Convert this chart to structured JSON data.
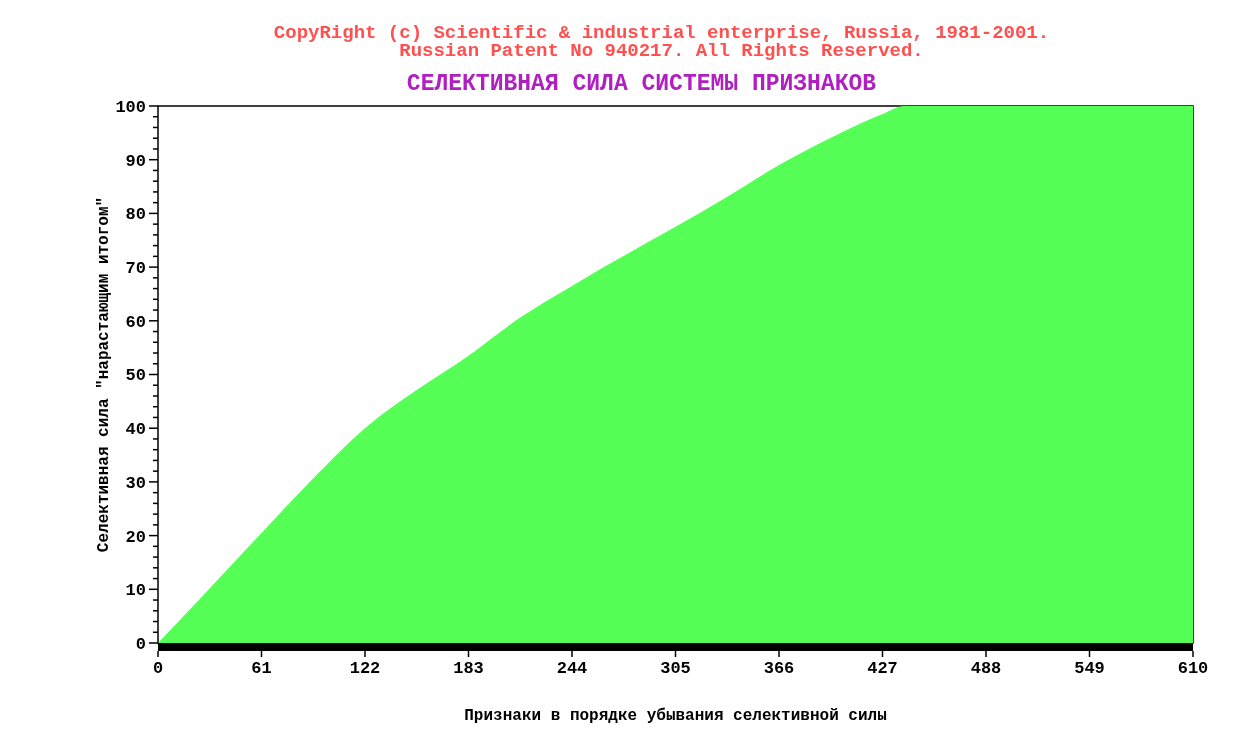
{
  "chart_data": {
    "type": "area",
    "title": "СЕЛЕКТИВНАЯ СИЛА СИСТЕМЫ ПРИЗНАКОВ",
    "annotations": [
      "CopyRight (c) Scientific & industrial enterprise, Russia, 1981-2001.",
      "Russian Patent No 940217. All Rights Reserved."
    ],
    "xlabel": "Признаки в порядке убывания селективной силы",
    "ylabel": "Селективная сила \"нарастающим итогом\"",
    "x": [
      0,
      30,
      61,
      91,
      122,
      152,
      183,
      213,
      244,
      274,
      305,
      335,
      366,
      396,
      427,
      440,
      610
    ],
    "series": [
      {
        "color": "#55ff55",
        "values": [
          0,
          10,
          20.5,
          30.5,
          40,
          47,
          53.5,
          60.5,
          66.5,
          72,
          77.5,
          83,
          89,
          94,
          98.5,
          100,
          100
        ]
      }
    ],
    "xlim": [
      0,
      610
    ],
    "xticks": [
      0,
      61,
      122,
      183,
      244,
      305,
      366,
      427,
      488,
      549,
      610
    ],
    "ylim": [
      0,
      100
    ],
    "yticks": [
      0,
      {
        "value": 2,
        "label": null
      },
      {
        "value": 4,
        "label": null
      },
      {
        "value": 6,
        "label": null
      },
      {
        "value": 8,
        "label": null
      },
      10,
      {
        "value": 12,
        "label": null
      },
      {
        "value": 14,
        "label": null
      },
      {
        "value": 16,
        "label": null
      },
      {
        "value": 18,
        "label": null
      },
      20,
      {
        "value": 22,
        "label": null
      },
      {
        "value": 24,
        "label": null
      },
      {
        "value": 26,
        "label": null
      },
      {
        "value": 28,
        "label": null
      },
      30,
      {
        "value": 32,
        "label": null
      },
      {
        "value": 34,
        "label": null
      },
      {
        "value": 36,
        "label": null
      },
      {
        "value": 38,
        "label": null
      },
      40,
      {
        "value": 42,
        "label": null
      },
      {
        "value": 44,
        "label": null
      },
      {
        "value": 46,
        "label": null
      },
      {
        "value": 48,
        "label": null
      },
      50,
      {
        "value": 52,
        "label": null
      },
      {
        "value": 54,
        "label": null
      },
      {
        "value": 56,
        "label": null
      },
      {
        "value": 58,
        "label": null
      },
      60,
      {
        "value": 62,
        "label": null
      },
      {
        "value": 64,
        "label": null
      },
      {
        "value": 66,
        "label": null
      },
      {
        "value": 68,
        "label": null
      },
      70,
      {
        "value": 72,
        "label": null
      },
      {
        "value": 74,
        "label": null
      },
      {
        "value": 76,
        "label": null
      },
      {
        "value": 78,
        "label": null
      },
      80,
      {
        "value": 82,
        "label": null
      },
      {
        "value": 84,
        "label": null
      },
      {
        "value": 86,
        "label": null
      },
      {
        "value": 88,
        "label": null
      },
      90,
      {
        "value": 92,
        "label": null
      },
      {
        "value": 94,
        "label": null
      },
      {
        "value": 96,
        "label": null
      },
      {
        "value": 98,
        "label": null
      },
      100
    ],
    "grid": false
  }
}
